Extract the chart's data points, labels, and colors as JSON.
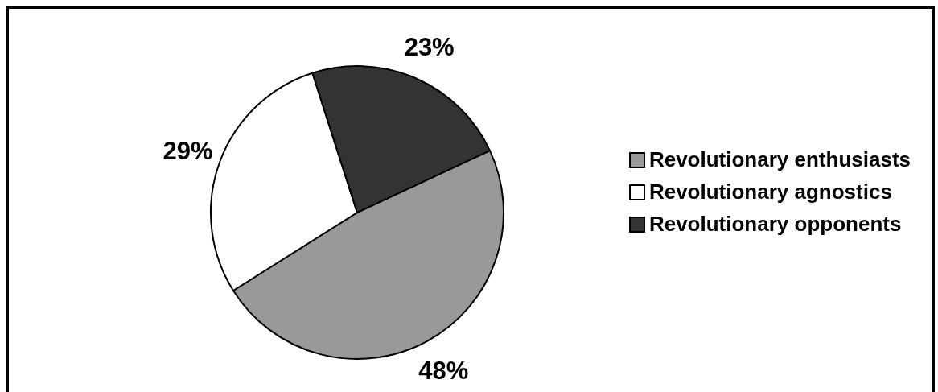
{
  "chart_data": {
    "type": "pie",
    "categories": [
      "Revolutionary enthusiasts",
      "Revolutionary agnostics",
      "Revolutionary opponents"
    ],
    "values": [
      48,
      29,
      23
    ],
    "colors": [
      "#999999",
      "#ffffff",
      "#333333"
    ],
    "value_labels": [
      "48%",
      "29%",
      "23%"
    ],
    "legend": "right"
  }
}
